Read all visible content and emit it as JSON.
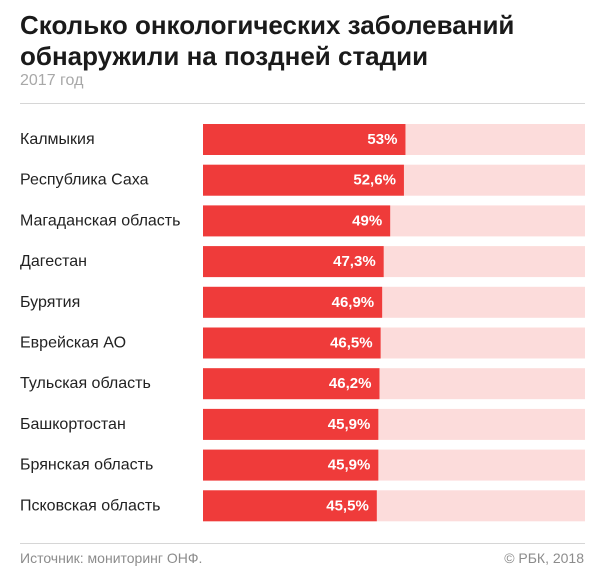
{
  "header": {
    "title_line1": "Сколько онкологических заболеваний",
    "title_line2": "обнаружили на поздней стадии",
    "subtitle": "2017 год"
  },
  "footer": {
    "source": "Источник: мониторинг ОНФ.",
    "copyright": "© РБК, 2018"
  },
  "colors": {
    "bar": "#ef3b3a",
    "track": "#fcdcdb",
    "label": "#222222",
    "value_text": "#ffffff"
  },
  "chart_data": {
    "type": "bar",
    "orientation": "horizontal",
    "categories": [
      "Калмыкия",
      "Республика Саха",
      "Магаданская область",
      "Дагестан",
      "Бурятия",
      "Еврейская АО",
      "Тульская область",
      "Башкортостан",
      "Брянская область",
      "Псковская область"
    ],
    "values": [
      53,
      52.6,
      49,
      47.3,
      46.9,
      46.5,
      46.2,
      45.9,
      45.9,
      45.5
    ],
    "value_labels": [
      "53%",
      "52,6%",
      "49%",
      "47,3%",
      "46,9%",
      "46,5%",
      "46,2%",
      "45,9%",
      "45,9%",
      "45,5%"
    ],
    "xlim": [
      0,
      100
    ],
    "unit": "%",
    "grid": false,
    "legend": "none"
  }
}
